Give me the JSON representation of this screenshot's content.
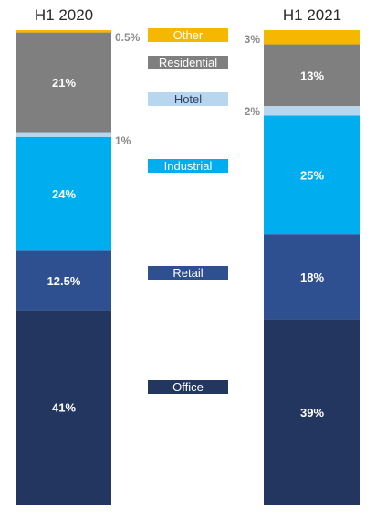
{
  "chart_data": {
    "type": "bar",
    "stacked": true,
    "normalized_percent": true,
    "categories": [
      "H1 2020",
      "H1 2021"
    ],
    "series": [
      {
        "name": "Office",
        "color": "#23365f",
        "values": [
          41,
          39
        ],
        "labels": [
          "41%",
          "39%"
        ]
      },
      {
        "name": "Retail",
        "color": "#2e5090",
        "values": [
          12.5,
          18
        ],
        "labels": [
          "12.5%",
          "18%"
        ]
      },
      {
        "name": "Industrial",
        "color": "#00adee",
        "values": [
          24,
          25
        ],
        "labels": [
          "24%",
          "25%"
        ]
      },
      {
        "name": "Hotel",
        "color": "#b8d7ee",
        "values": [
          1,
          2
        ],
        "labels": [
          "1%",
          "2%"
        ]
      },
      {
        "name": "Residential",
        "color": "#7f7f7f",
        "values": [
          21,
          13
        ],
        "labels": [
          "21%",
          "13%"
        ]
      },
      {
        "name": "Other",
        "color": "#f5b700",
        "values": [
          0.5,
          3
        ],
        "labels": [
          "0.5%",
          "3%"
        ]
      }
    ],
    "legend_placement": "between-columns"
  }
}
